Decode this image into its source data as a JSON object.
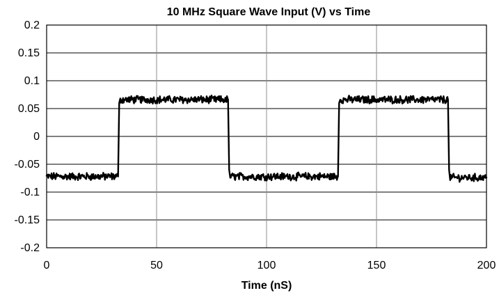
{
  "chart_data": {
    "type": "line",
    "title": "10 MHz Square Wave Input (V) vs Time",
    "xlabel": "Time (nS)",
    "ylabel": "",
    "xlim": [
      0,
      200
    ],
    "ylim": [
      -0.2,
      0.2
    ],
    "x_ticks": [
      0,
      50,
      100,
      150,
      200
    ],
    "x_tick_labels": [
      "0",
      "50",
      "100",
      "150",
      "200"
    ],
    "y_ticks": [
      0.2,
      0.15,
      0.1,
      0.05,
      0,
      -0.05,
      -0.1,
      -0.15,
      -0.2
    ],
    "y_tick_labels": [
      "0.2",
      "0.15",
      "0.1",
      "0.05",
      "0",
      "-0.05",
      "-0.1",
      "-0.15",
      "-0.2"
    ],
    "grid": {
      "x": true,
      "y": true
    },
    "legend": "none",
    "series": [
      {
        "color": "#000000",
        "high_level": 0.068,
        "low_level": -0.072,
        "noise_amplitude": 0.006,
        "points": [
          [
            0,
            -0.072
          ],
          [
            32.5,
            -0.072
          ],
          [
            33.0,
            0.06
          ],
          [
            33.5,
            0.066
          ],
          [
            82.5,
            0.066
          ],
          [
            83.0,
            -0.06
          ],
          [
            83.5,
            -0.072
          ],
          [
            132.5,
            -0.072
          ],
          [
            133.0,
            0.06
          ],
          [
            133.5,
            0.066
          ],
          [
            182.5,
            0.066
          ],
          [
            183.0,
            -0.06
          ],
          [
            183.5,
            -0.074
          ],
          [
            200,
            -0.074
          ]
        ]
      }
    ]
  }
}
